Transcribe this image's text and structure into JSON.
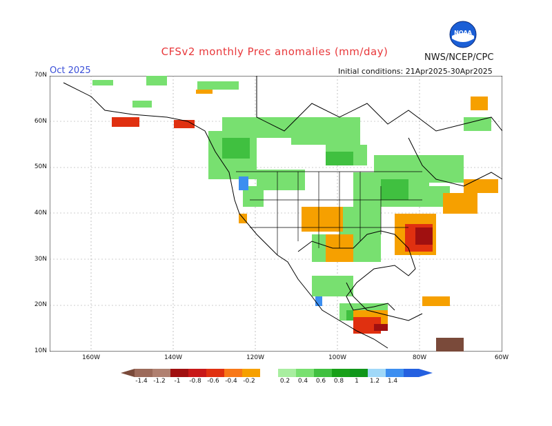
{
  "header": {
    "title": "CFSv2 monthly Prec anomalies (mm/day)",
    "agency": "NWS/NCEP/CPC",
    "logo_text": "NOAA",
    "month": "Oct 2025",
    "initial_conditions": "Initial conditions: 21Apr2025-30Apr2025"
  },
  "axes": {
    "lat_labels": [
      "70N",
      "60N",
      "50N",
      "40N",
      "30N",
      "20N",
      "10N"
    ],
    "lon_labels": [
      "160W",
      "140W",
      "120W",
      "100W",
      "80W",
      "60W"
    ],
    "lat_range": [
      10,
      70
    ],
    "lon_range": [
      -170,
      -60
    ],
    "grid": true
  },
  "colorbar": {
    "labels": [
      "-1.4",
      "-1.2",
      "-1",
      "-0.8",
      "-0.6",
      "-0.4",
      "-0.2",
      "0.2",
      "0.4",
      "0.6",
      "0.8",
      "1",
      "1.2",
      "1.4"
    ],
    "colors": [
      "#7a4a3a",
      "#9c6a5a",
      "#b08070",
      "#a01010",
      "#c81818",
      "#e03010",
      "#f87818",
      "#f6a000",
      "#ffffff",
      "#a8eea0",
      "#78e070",
      "#40c040",
      "#18a018",
      "#10961a",
      "#a0d8f8",
      "#3c8ef0",
      "#2460e0"
    ]
  },
  "anomaly_regions": [
    {
      "name": "east-us-dry",
      "colors": "#e07810"
    },
    {
      "name": "north-canada-wet",
      "colors": "#70dd70"
    }
  ]
}
